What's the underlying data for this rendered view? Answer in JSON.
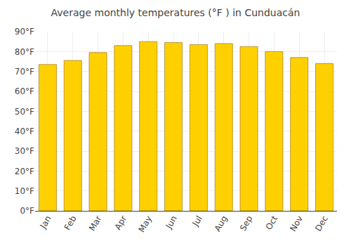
{
  "chart_data": {
    "type": "bar",
    "title": "Average monthly temperatures (°F ) in Cunduacán",
    "categories": [
      "Jan",
      "Feb",
      "Mar",
      "Apr",
      "May",
      "Jun",
      "Jul",
      "Aug",
      "Sep",
      "Oct",
      "Nov",
      "Dec"
    ],
    "values": [
      73.5,
      75.5,
      79.5,
      83,
      85,
      84.5,
      83.5,
      84,
      82.5,
      80,
      77,
      74
    ],
    "color": "#FFD000",
    "ylim": [
      0,
      90
    ],
    "yticks": [
      {
        "value": 0,
        "label": "0°F"
      },
      {
        "value": 10,
        "label": "10°F"
      },
      {
        "value": 20,
        "label": "20°F"
      },
      {
        "value": 30,
        "label": "30°F"
      },
      {
        "value": 40,
        "label": "40°F"
      },
      {
        "value": 50,
        "label": "50°F"
      },
      {
        "value": 60,
        "label": "60°F"
      },
      {
        "value": 70,
        "label": "70°F"
      },
      {
        "value": 80,
        "label": "80°F"
      },
      {
        "value": 90,
        "label": "90°F"
      }
    ],
    "grid": true
  }
}
